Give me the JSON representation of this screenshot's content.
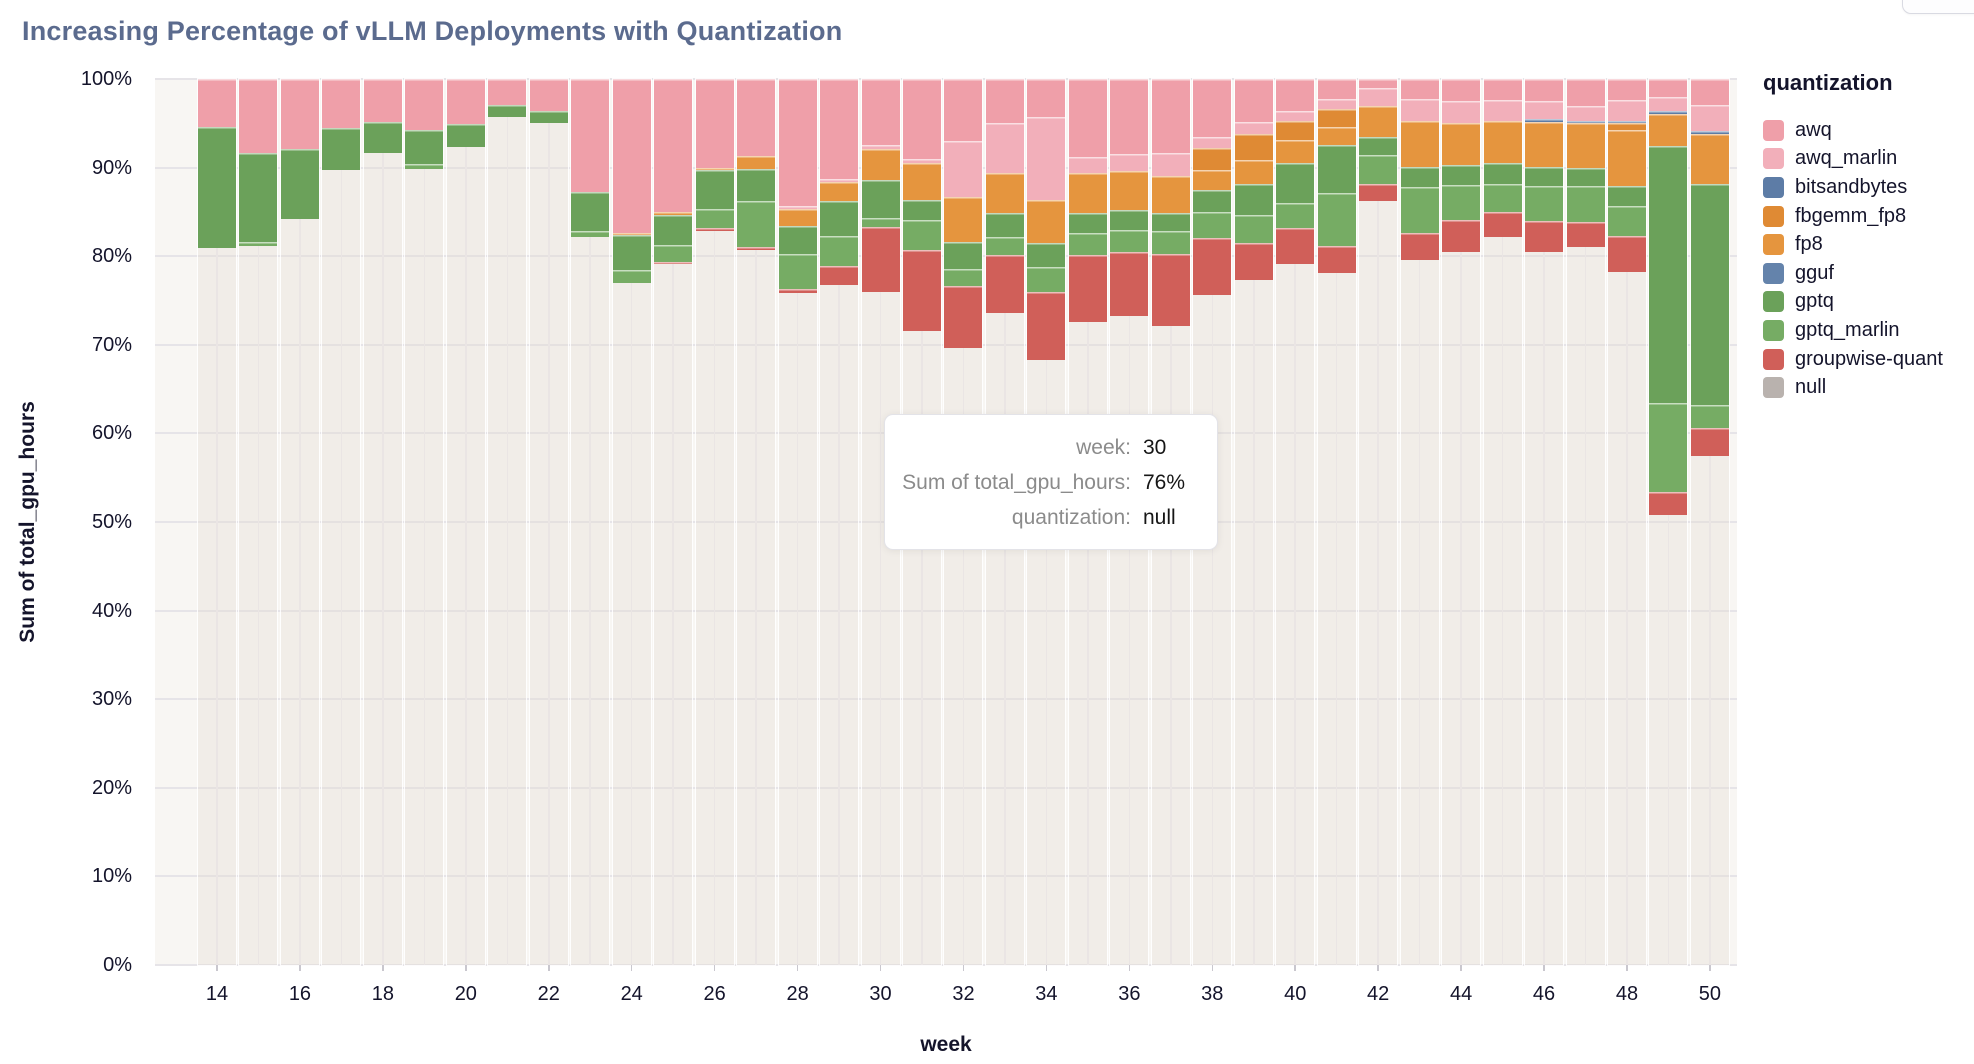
{
  "title": "Increasing Percentage of vLLM Deployments with Quantization",
  "tooltip": {
    "rows": [
      {
        "label": "week:",
        "value": "30"
      },
      {
        "label": "Sum of total_gpu_hours:",
        "value": "76%"
      },
      {
        "label": "quantization:",
        "value": "null"
      }
    ]
  },
  "legend": {
    "title": "quantization",
    "items": [
      {
        "name": "awq",
        "color": "#EF9FA9"
      },
      {
        "name": "awq_marlin",
        "color": "#F2AFBA"
      },
      {
        "name": "bitsandbytes",
        "color": "#5D7CA6"
      },
      {
        "name": "fbgemm_fp8",
        "color": "#DF8A34"
      },
      {
        "name": "fp8",
        "color": "#E5953E"
      },
      {
        "name": "gguf",
        "color": "#6483AB"
      },
      {
        "name": "gptq",
        "color": "#6BA15A"
      },
      {
        "name": "gptq_marlin",
        "color": "#76AC64"
      },
      {
        "name": "groupwise-quant",
        "color": "#D05F59"
      },
      {
        "name": "null",
        "color": "#B9B2AE"
      }
    ]
  },
  "axes": {
    "xlabel": "week",
    "ylabel": "Sum of total_gpu_hours",
    "y_ticks": [
      "100%",
      "90%",
      "80%",
      "70%",
      "60%",
      "50%",
      "40%",
      "30%",
      "20%",
      "10%",
      "0%"
    ],
    "x_ticks": [
      14,
      16,
      18,
      20,
      22,
      24,
      26,
      28,
      30,
      32,
      34,
      36,
      38,
      40,
      42,
      44,
      46,
      48,
      50
    ]
  },
  "chart_data": {
    "type": "bar",
    "subtype": "stacked-percent",
    "title": "Increasing Percentage of vLLM Deployments with Quantization",
    "xlabel": "week",
    "ylabel": "Sum of total_gpu_hours",
    "ylim": [
      0,
      100
    ],
    "grid": true,
    "legend_position": "right",
    "x": [
      14,
      15,
      16,
      17,
      18,
      19,
      20,
      21,
      22,
      23,
      24,
      25,
      26,
      27,
      28,
      29,
      30,
      31,
      32,
      33,
      34,
      35,
      36,
      37,
      38,
      39,
      40,
      41,
      42,
      43,
      44,
      45,
      46,
      47,
      48,
      49,
      50
    ],
    "stack_bottom_to_top": [
      "null",
      "groupwise-quant",
      "gptq_marlin",
      "gptq",
      "gguf",
      "fp8",
      "fbgemm_fp8",
      "bitsandbytes",
      "awq_marlin",
      "awq"
    ],
    "series": [
      {
        "name": "awq",
        "color": "#EF9FA9",
        "values": [
          5.4,
          8.4,
          7.9,
          5.5,
          4.8,
          5.8,
          5.1,
          2.9,
          3.6,
          12.7,
          17.4,
          15.0,
          10.0,
          8.7,
          14.3,
          11.3,
          7.5,
          9.0,
          7.0,
          5.0,
          4.3,
          8.8,
          8.5,
          8.4,
          6.6,
          4.8,
          3.6,
          2.3,
          1.0,
          2.3,
          2.5,
          2.4,
          2.5,
          3.0,
          2.4,
          2.0,
          2.9
        ]
      },
      {
        "name": "awq_marlin",
        "color": "#F2AFBA",
        "values": [
          0,
          0,
          0,
          0,
          0,
          0,
          0,
          0,
          0,
          0,
          0,
          0,
          0,
          0,
          0.4,
          0.3,
          0.4,
          0.5,
          6.3,
          5.6,
          9.3,
          1.8,
          1.9,
          2.5,
          1.2,
          1.4,
          1.1,
          1.1,
          2.1,
          2.4,
          2.5,
          2.3,
          2.0,
          1.7,
          2.3,
          1.6,
          3.0
        ]
      },
      {
        "name": "bitsandbytes",
        "color": "#5D7CA6",
        "values": [
          0,
          0,
          0,
          0,
          0,
          0,
          0,
          0,
          0,
          0,
          0,
          0,
          0,
          0,
          0,
          0,
          0,
          0,
          0,
          0,
          0,
          0,
          0,
          0,
          0,
          0,
          0,
          0,
          0,
          0,
          0,
          0,
          0.3,
          0.3,
          0.3,
          0.3,
          0.3
        ]
      },
      {
        "name": "fbgemm_fp8",
        "color": "#DF8A34",
        "values": [
          0,
          0,
          0,
          0,
          0,
          0,
          0,
          0,
          0,
          0,
          0,
          0,
          0,
          0,
          0,
          0,
          0,
          0,
          0,
          0,
          0,
          0,
          0,
          0,
          2.5,
          2.9,
          2.2,
          2.0,
          0,
          0,
          0,
          0,
          0,
          0,
          0.7,
          0,
          0
        ]
      },
      {
        "name": "fp8",
        "color": "#E5953E",
        "values": [
          0,
          0,
          0,
          0,
          0,
          0,
          0,
          0,
          0,
          0,
          0.2,
          0.3,
          0.3,
          1.4,
          1.9,
          2.2,
          3.5,
          4.1,
          5.1,
          4.5,
          4.9,
          4.5,
          4.4,
          4.2,
          2.2,
          2.7,
          2.6,
          2.0,
          3.4,
          5.2,
          4.7,
          4.8,
          5.1,
          5.0,
          6.4,
          3.7,
          5.7
        ]
      },
      {
        "name": "gguf",
        "color": "#6483AB",
        "values": [
          0,
          0,
          0,
          0,
          0,
          0,
          0,
          0,
          0,
          0,
          0,
          0,
          0,
          0,
          0,
          0,
          0,
          0,
          0,
          0,
          0,
          0,
          0,
          0,
          0,
          0,
          0,
          0,
          0,
          0,
          0,
          0,
          0,
          0,
          0,
          0,
          0
        ]
      },
      {
        "name": "gptq",
        "color": "#6BA15A",
        "values": [
          13.7,
          10.0,
          7.9,
          4.8,
          3.5,
          3.8,
          2.6,
          1.4,
          1.4,
          4.5,
          3.9,
          3.4,
          4.4,
          3.7,
          3.2,
          3.9,
          4.3,
          2.3,
          3.0,
          2.7,
          2.7,
          2.3,
          2.2,
          2.1,
          2.5,
          3.5,
          4.5,
          5.5,
          2.1,
          2.3,
          2.3,
          2.3,
          2.2,
          2.1,
          2.2,
          29.0,
          24.9
        ]
      },
      {
        "name": "gptq_marlin",
        "color": "#76AC64",
        "values": [
          0,
          0.4,
          0,
          0,
          0,
          0.5,
          0,
          0,
          0,
          0.6,
          1.5,
          2.0,
          2.1,
          5.2,
          3.9,
          3.4,
          1.0,
          3.4,
          2.0,
          2.1,
          2.8,
          2.5,
          2.5,
          2.5,
          3.0,
          3.2,
          2.8,
          6.0,
          3.2,
          5.2,
          3.9,
          3.2,
          3.9,
          4.0,
          3.4,
          10.0,
          2.6
        ]
      },
      {
        "name": "groupwise-quant",
        "color": "#D05F59",
        "values": [
          0,
          0,
          0,
          0,
          0,
          0,
          0,
          0,
          0,
          0,
          0,
          0.2,
          0.3,
          0.3,
          0.5,
          2.1,
          7.3,
          9.1,
          7.0,
          6.5,
          7.7,
          7.5,
          7.3,
          8.2,
          6.4,
          4.2,
          4.1,
          3.0,
          2.0,
          3.0,
          3.6,
          2.8,
          3.5,
          2.9,
          4.1,
          2.6,
          3.2
        ]
      },
      {
        "name": "null",
        "color": "#B9B2AE",
        "values": [
          80.9,
          81.2,
          84.2,
          89.7,
          91.7,
          89.9,
          92.3,
          95.7,
          95.0,
          82.2,
          77.0,
          79.1,
          82.9,
          80.7,
          75.8,
          76.8,
          76.0,
          71.6,
          69.6,
          73.6,
          68.3,
          72.6,
          73.2,
          72.1,
          75.6,
          77.3,
          79.1,
          78.1,
          86.2,
          79.6,
          80.5,
          82.2,
          80.5,
          81.0,
          78.2,
          50.8,
          57.4
        ]
      }
    ]
  }
}
